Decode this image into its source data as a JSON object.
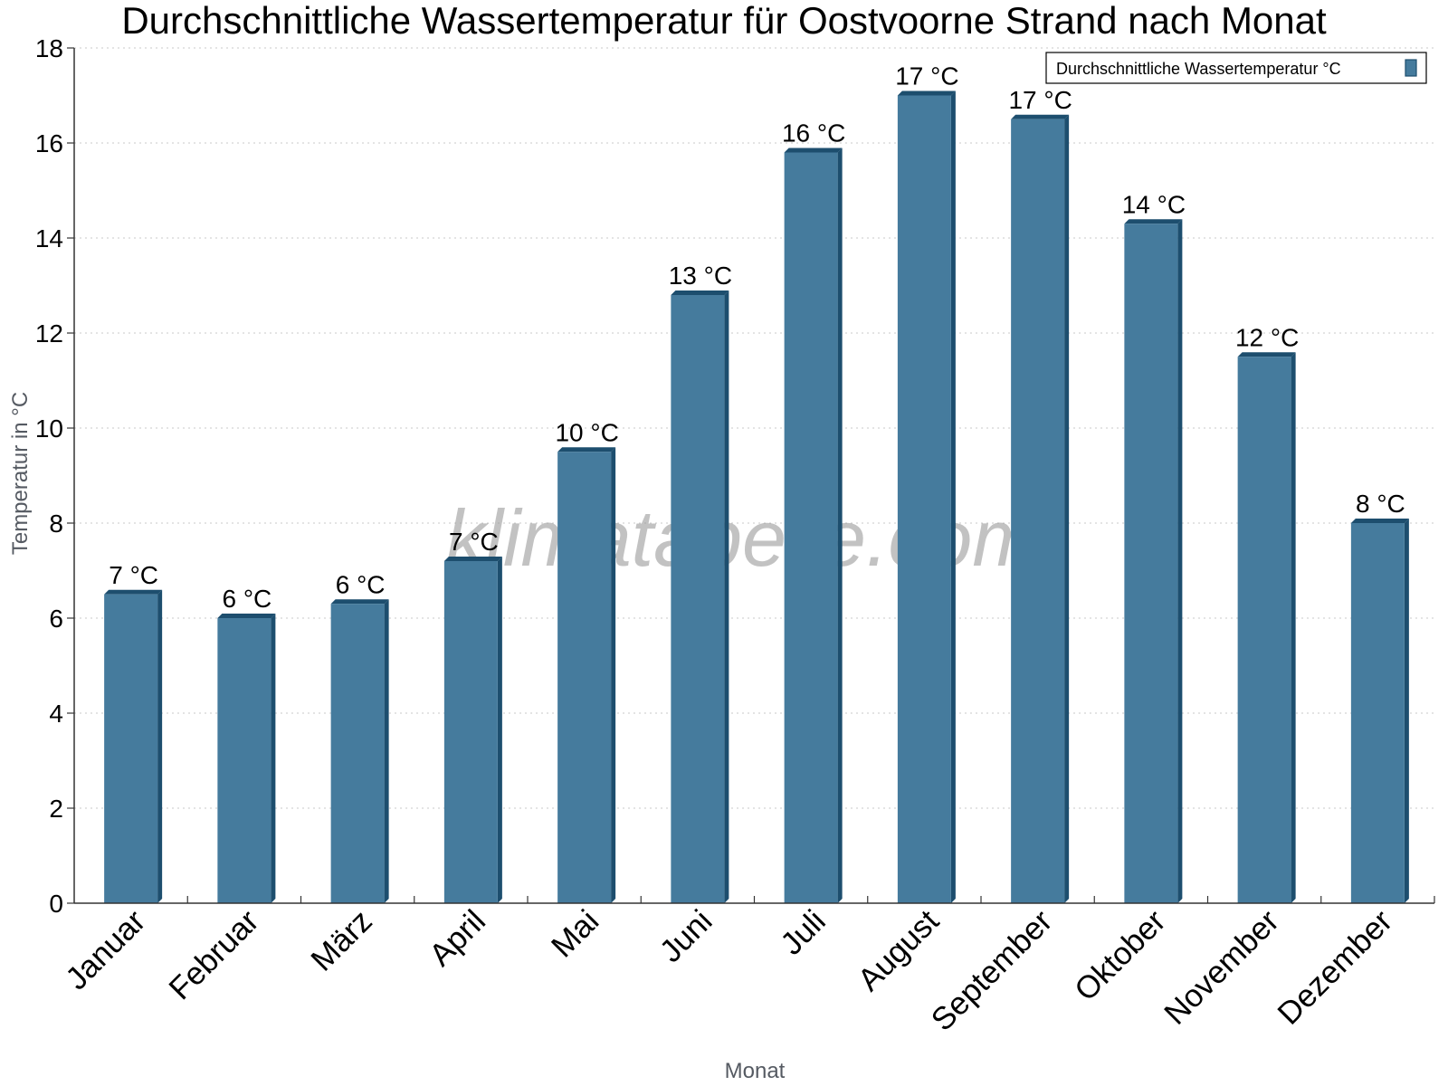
{
  "chart_data": {
    "type": "bar",
    "title": "Durchschnittliche Wassertemperatur für Oostvoorne Strand nach Monat",
    "xlabel": "Monat",
    "ylabel": "Temperatur in °C",
    "ylim": [
      0,
      18
    ],
    "yticks": [
      0,
      2,
      4,
      6,
      8,
      10,
      12,
      14,
      16,
      18
    ],
    "grid": true,
    "legend_position": "top-right",
    "categories": [
      "Januar",
      "Februar",
      "März",
      "April",
      "Mai",
      "Juni",
      "Juli",
      "August",
      "September",
      "Oktober",
      "November",
      "Dezember"
    ],
    "series": [
      {
        "name": "Durchschnittliche Wassertemperatur °C",
        "values": [
          6.5,
          6.0,
          6.3,
          7.2,
          9.5,
          12.8,
          15.8,
          17.0,
          16.5,
          14.3,
          11.5,
          8.0
        ],
        "labels": [
          "7 °C",
          "6 °C",
          "6 °C",
          "7 °C",
          "10 °C",
          "13 °C",
          "16 °C",
          "17 °C",
          "17 °C",
          "14 °C",
          "12 °C",
          "8 °C"
        ]
      }
    ],
    "colors": {
      "bar": "#457b9d",
      "bar_dark": "#1d4e6e"
    },
    "watermark": "klimatabelle.com"
  }
}
